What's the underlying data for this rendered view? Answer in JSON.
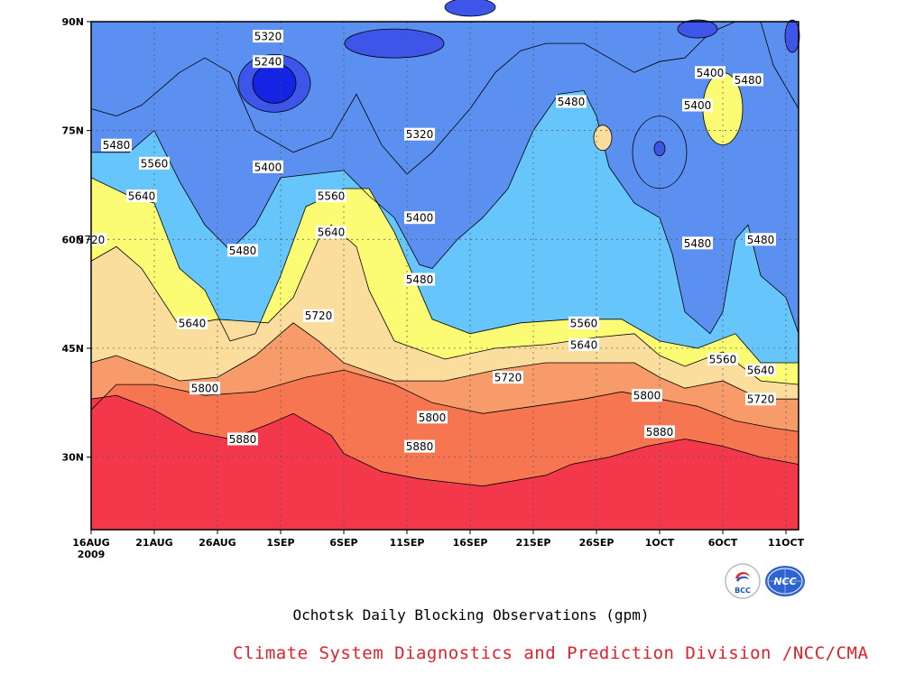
{
  "chart_data": {
    "type": "contour",
    "title": "Ochotsk Daily Blocking Observations (gpm)",
    "credit": "Climate System Diagnostics and Prediction Division /NCC/CMA",
    "x_ticks": [
      "16AUG",
      "21AUG",
      "26AUG",
      "1SEP",
      "6SEP",
      "11SEP",
      "16SEP",
      "21SEP",
      "26SEP",
      "1OCT",
      "6OCT",
      "11OCT"
    ],
    "x_first_tick_year": "2009",
    "y_ticks": [
      "90N",
      "75N",
      "60N",
      "45N",
      "30N"
    ],
    "x_range": [
      "2009-08-16",
      "2009-10-11"
    ],
    "y_range_deg_n": [
      20,
      90
    ],
    "grid": true,
    "contour_levels_gpm": [
      5240,
      5320,
      5400,
      5480,
      5560,
      5640,
      5720,
      5800,
      5880
    ],
    "fill_colors": {
      "below_5240": "#1524e2",
      "5240_5320": "#3e55ea",
      "5320_5400": "#5b8ff0",
      "5400_5480": "#66c6fc",
      "5480_5560": "#fbfb74",
      "5560_5640": "#fbde9e",
      "5640_5720": "#f89b6b",
      "5720_5800": "#f67652",
      "5800_5880": "#f4727b",
      "above_5880": "#f2384a"
    },
    "labels": [
      {
        "text": "5320",
        "date": "2009-08-30",
        "lat": 88
      },
      {
        "text": "5240",
        "date": "2009-08-30",
        "lat": 84.5
      },
      {
        "text": "5480",
        "date": "2009-08-18",
        "lat": 73
      },
      {
        "text": "5560",
        "date": "2009-08-21",
        "lat": 70.5
      },
      {
        "text": "5400",
        "date": "2009-08-30",
        "lat": 70
      },
      {
        "text": "5640",
        "date": "2009-08-20",
        "lat": 66
      },
      {
        "text": "5720",
        "date": "2009-08-16",
        "lat": 60
      },
      {
        "text": "5480",
        "date": "2009-08-28",
        "lat": 58.5
      },
      {
        "text": "5560",
        "date": "2009-09-04",
        "lat": 66
      },
      {
        "text": "5640",
        "date": "2009-09-04",
        "lat": 61
      },
      {
        "text": "5640",
        "date": "2009-08-24",
        "lat": 48.5
      },
      {
        "text": "5720",
        "date": "2009-09-03",
        "lat": 49.5
      },
      {
        "text": "5320",
        "date": "2009-09-11",
        "lat": 74.5
      },
      {
        "text": "5400",
        "date": "2009-09-11",
        "lat": 63
      },
      {
        "text": "5480",
        "date": "2009-09-11",
        "lat": 54.5
      },
      {
        "text": "5800",
        "date": "2009-08-25",
        "lat": 39.5
      },
      {
        "text": "5880",
        "date": "2009-08-28",
        "lat": 32.5
      },
      {
        "text": "5800",
        "date": "2009-09-12",
        "lat": 35.5
      },
      {
        "text": "5880",
        "date": "2009-09-11",
        "lat": 31.5
      },
      {
        "text": "5720",
        "date": "2009-09-18",
        "lat": 41
      },
      {
        "text": "5480",
        "date": "2009-09-23",
        "lat": 79
      },
      {
        "text": "5560",
        "date": "2009-09-24",
        "lat": 48.5
      },
      {
        "text": "5640",
        "date": "2009-09-24",
        "lat": 45.5
      },
      {
        "text": "5800",
        "date": "2009-09-29",
        "lat": 38.5
      },
      {
        "text": "5880",
        "date": "2009-09-30",
        "lat": 33.5
      },
      {
        "text": "5400",
        "date": "2009-10-04",
        "lat": 83
      },
      {
        "text": "5400",
        "date": "2009-10-03",
        "lat": 78.5
      },
      {
        "text": "5480",
        "date": "2009-10-07",
        "lat": 82
      },
      {
        "text": "5480",
        "date": "2009-10-03",
        "lat": 59.5
      },
      {
        "text": "5480",
        "date": "2009-10-08",
        "lat": 60
      },
      {
        "text": "5560",
        "date": "2009-10-05",
        "lat": 43.5
      },
      {
        "text": "5640",
        "date": "2009-10-08",
        "lat": 42
      },
      {
        "text": "5720",
        "date": "2009-10-08",
        "lat": 38
      }
    ],
    "logos": [
      "BCC",
      "NCC"
    ]
  }
}
